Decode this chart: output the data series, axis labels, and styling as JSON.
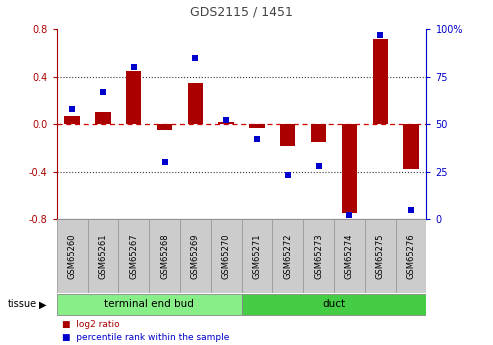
{
  "title": "GDS2115 / 1451",
  "samples": [
    "GSM65260",
    "GSM65261",
    "GSM65267",
    "GSM65268",
    "GSM65269",
    "GSM65270",
    "GSM65271",
    "GSM65272",
    "GSM65273",
    "GSM65274",
    "GSM65275",
    "GSM65276"
  ],
  "log2_ratio": [
    0.07,
    0.1,
    0.45,
    -0.05,
    0.35,
    0.02,
    -0.03,
    -0.18,
    -0.15,
    -0.75,
    0.72,
    -0.38
  ],
  "percentile": [
    58,
    67,
    80,
    30,
    85,
    52,
    42,
    23,
    28,
    2,
    97,
    5
  ],
  "bar_color": "#aa0000",
  "dot_color": "#0000cc",
  "ylim": [
    -0.8,
    0.8
  ],
  "right_ylim": [
    0,
    100
  ],
  "yticks_left": [
    -0.8,
    -0.4,
    0.0,
    0.4,
    0.8
  ],
  "yticks_right": [
    0,
    25,
    50,
    75,
    100
  ],
  "ytick_labels_right": [
    "0",
    "25",
    "50",
    "75",
    "100%"
  ],
  "hlines": [
    0.4,
    -0.4
  ],
  "groups": [
    {
      "label": "terminal end bud",
      "start": 0,
      "end": 6,
      "color": "#88ee88"
    },
    {
      "label": "duct",
      "start": 6,
      "end": 12,
      "color": "#44cc44"
    }
  ],
  "tissue_label": "tissue",
  "legend_bar_label": "log2 ratio",
  "legend_dot_label": "percentile rank within the sample",
  "bg_color": "#ffffff",
  "plot_bg_color": "#ffffff",
  "bar_width": 0.5,
  "dotted_line_color": "#333333",
  "zero_line_color": "#cc0000",
  "spine_color": "#000000",
  "label_box_color": "#cccccc",
  "label_box_edge": "#999999"
}
